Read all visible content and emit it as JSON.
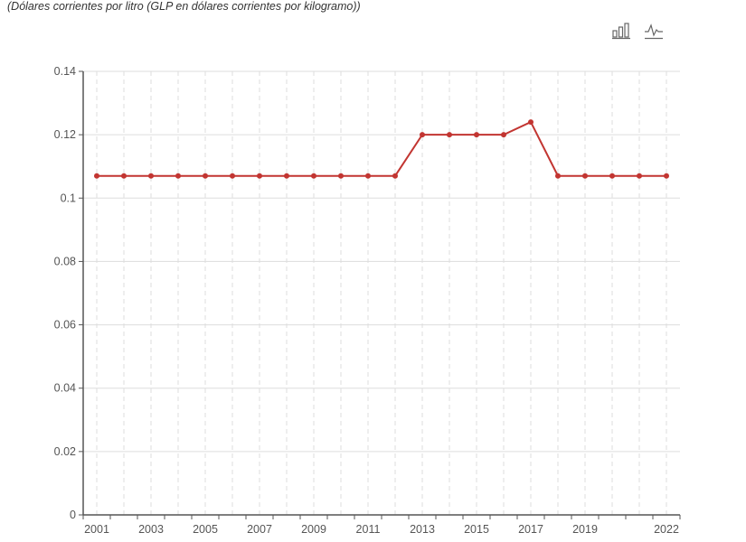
{
  "subtitle": "(Dólares corrientes por litro (GLP en dólares corrientes por kilogramo))",
  "toolbox": {
    "bar_icon": "bar-chart-icon",
    "line_icon": "line-chart-icon"
  },
  "colors": {
    "series": "#c23531",
    "axis": "#555555",
    "grid": "#dddddd"
  },
  "chart_data": {
    "type": "line",
    "title": "",
    "xlabel": "",
    "ylabel": "",
    "x": [
      2001,
      2002,
      2003,
      2004,
      2005,
      2006,
      2007,
      2008,
      2009,
      2010,
      2011,
      2012,
      2013,
      2014,
      2015,
      2016,
      2017,
      2018,
      2019,
      2020,
      2021,
      2022
    ],
    "x_tick_labels": [
      "2001",
      "2003",
      "2005",
      "2007",
      "2009",
      "2011",
      "2013",
      "2015",
      "2017",
      "2019",
      "2022"
    ],
    "y_tick_labels": [
      "0",
      "0.02",
      "0.04",
      "0.06",
      "0.08",
      "0.1",
      "0.12",
      "0.14"
    ],
    "ylim": [
      0,
      0.14
    ],
    "grid": true,
    "series": [
      {
        "values": [
          0.107,
          0.107,
          0.107,
          0.107,
          0.107,
          0.107,
          0.107,
          0.107,
          0.107,
          0.107,
          0.107,
          0.107,
          0.12,
          0.12,
          0.12,
          0.12,
          0.124,
          0.107,
          0.107,
          0.107,
          0.107,
          0.107
        ]
      }
    ]
  }
}
